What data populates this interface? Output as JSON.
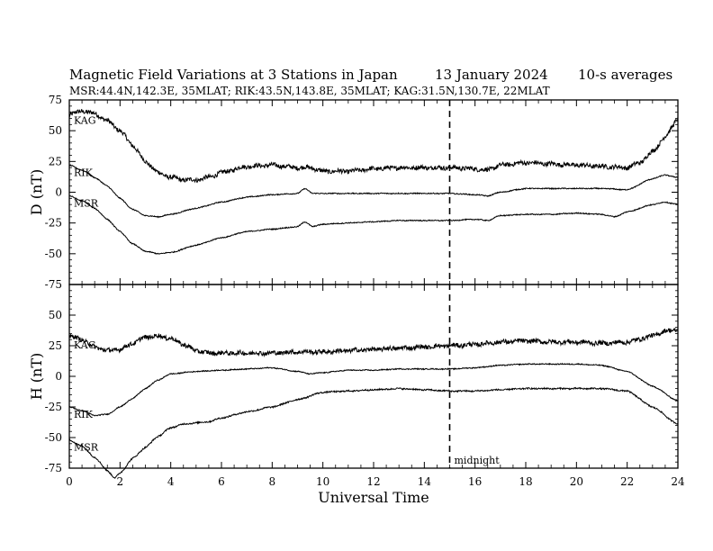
{
  "header": {
    "title": "Magnetic Field Variations at 3 Stations in Japan",
    "date": "13 January 2024",
    "averaging": "10-s averages",
    "stations_line": "MSR:44.4N,142.3E, 35MLAT;  RIK:43.5N,143.8E, 35MLAT;  KAG:31.5N,130.7E, 22MLAT"
  },
  "chart_data": [
    {
      "type": "line",
      "ylabel": "D (nT)",
      "xlabel": "",
      "xlim": [
        0,
        24
      ],
      "ylim": [
        -75,
        75
      ],
      "yticks": [
        -75,
        -50,
        -25,
        0,
        25,
        50,
        75
      ],
      "xticks": [
        0,
        2,
        4,
        6,
        8,
        10,
        12,
        14,
        16,
        18,
        20,
        22,
        24
      ],
      "series": [
        {
          "name": "KAG",
          "noise": 1.8,
          "x": [
            0,
            0.5,
            1,
            1.5,
            2,
            2.5,
            3,
            3.5,
            4,
            4.5,
            5,
            5.5,
            6,
            7,
            8,
            9,
            9.5,
            10,
            11,
            12,
            13,
            14,
            15,
            16,
            16.5,
            17,
            18,
            19,
            20,
            21,
            22,
            22.5,
            23,
            23.5,
            24
          ],
          "y": [
            63,
            66,
            64,
            58,
            50,
            38,
            25,
            16,
            12,
            10,
            10,
            12,
            16,
            21,
            22,
            20,
            20,
            17,
            17,
            19,
            20,
            20,
            20,
            19,
            18,
            22,
            24,
            23,
            22,
            21,
            20,
            24,
            33,
            45,
            60
          ]
        },
        {
          "name": "RIK",
          "noise": 0.4,
          "x": [
            0,
            0.5,
            1,
            1.5,
            2,
            2.5,
            3,
            3.5,
            4,
            5,
            6,
            7,
            8,
            9,
            9.3,
            9.6,
            10,
            11,
            12,
            13,
            14,
            15,
            16,
            16.5,
            17,
            18,
            19,
            20,
            21,
            22,
            23,
            23.5,
            24
          ],
          "y": [
            22,
            18,
            12,
            5,
            -5,
            -14,
            -19,
            -20,
            -18,
            -13,
            -8,
            -4,
            -2,
            -1,
            3,
            -1,
            -1,
            -1,
            -1,
            -1,
            -1,
            -1,
            -2,
            -3,
            0,
            3,
            3,
            3,
            3,
            2,
            11,
            14,
            12
          ]
        },
        {
          "name": "MSR",
          "noise": 0.4,
          "x": [
            0,
            0.5,
            1,
            1.5,
            2,
            2.5,
            3,
            3.5,
            4,
            5,
            6,
            7,
            8,
            9,
            9.3,
            9.6,
            10,
            11,
            12,
            13,
            14,
            15,
            16,
            16.5,
            17,
            18,
            19,
            20,
            21,
            21.5,
            22,
            23,
            23.5,
            24
          ],
          "y": [
            -3,
            -7,
            -13,
            -22,
            -32,
            -42,
            -48,
            -50,
            -49,
            -43,
            -37,
            -32,
            -30,
            -28,
            -24,
            -28,
            -26,
            -25,
            -24,
            -23,
            -23,
            -23,
            -22,
            -23,
            -19,
            -18,
            -18,
            -17,
            -18,
            -20,
            -16,
            -10,
            -8,
            -10
          ]
        }
      ]
    },
    {
      "type": "line",
      "ylabel": "H (nT)",
      "xlabel": "Universal Time",
      "xlim": [
        0,
        24
      ],
      "ylim": [
        -75,
        75
      ],
      "yticks": [
        -75,
        -50,
        -25,
        0,
        25,
        50
      ],
      "xticks": [
        0,
        2,
        4,
        6,
        8,
        10,
        12,
        14,
        16,
        18,
        20,
        22,
        24
      ],
      "series": [
        {
          "name": "KAG",
          "noise": 1.8,
          "x": [
            0,
            0.5,
            1,
            1.5,
            2,
            2.5,
            3,
            3.5,
            4,
            4.5,
            5,
            5.5,
            6,
            7,
            8,
            9,
            10,
            11,
            12,
            13,
            14,
            15,
            16,
            17,
            18,
            19,
            20,
            21,
            22,
            23,
            23.5,
            24
          ],
          "y": [
            33,
            30,
            24,
            21,
            22,
            27,
            32,
            33,
            31,
            26,
            21,
            19,
            19,
            19,
            19,
            20,
            20,
            21,
            22,
            23,
            24,
            25,
            26,
            28,
            29,
            28,
            28,
            27,
            28,
            33,
            37,
            38
          ]
        },
        {
          "name": "RIK",
          "noise": 0.4,
          "x": [
            0,
            0.5,
            1,
            1.5,
            2,
            2.5,
            3,
            3.5,
            4,
            5,
            6,
            7,
            8,
            9,
            9.5,
            10,
            11,
            12,
            13,
            14,
            15,
            16,
            17,
            18,
            19,
            20,
            21,
            22,
            23,
            24
          ],
          "y": [
            -25,
            -28,
            -32,
            -31,
            -25,
            -18,
            -10,
            -3,
            2,
            4,
            5,
            6,
            7,
            4,
            2,
            3,
            5,
            5,
            6,
            6,
            6,
            7,
            9,
            10,
            10,
            10,
            9,
            4,
            -8,
            -20
          ]
        },
        {
          "name": "MSR",
          "noise": 0.6,
          "x": [
            0,
            0.5,
            1,
            1.5,
            1.8,
            2,
            2.5,
            3,
            3.5,
            4,
            4.5,
            5,
            5.5,
            6,
            7,
            8,
            9,
            10,
            11,
            12,
            13,
            14,
            15,
            16,
            17,
            18,
            19,
            20,
            21,
            22,
            23,
            24
          ],
          "y": [
            -52,
            -57,
            -66,
            -77,
            -83,
            -79,
            -67,
            -58,
            -49,
            -42,
            -39,
            -38,
            -37,
            -34,
            -29,
            -25,
            -19,
            -13,
            -12,
            -11,
            -10,
            -11,
            -12,
            -12,
            -11,
            -10,
            -10,
            -10,
            -10,
            -12,
            -25,
            -39
          ]
        }
      ]
    }
  ],
  "annotations": {
    "midnight": {
      "label": "midnight",
      "x": 15
    }
  }
}
